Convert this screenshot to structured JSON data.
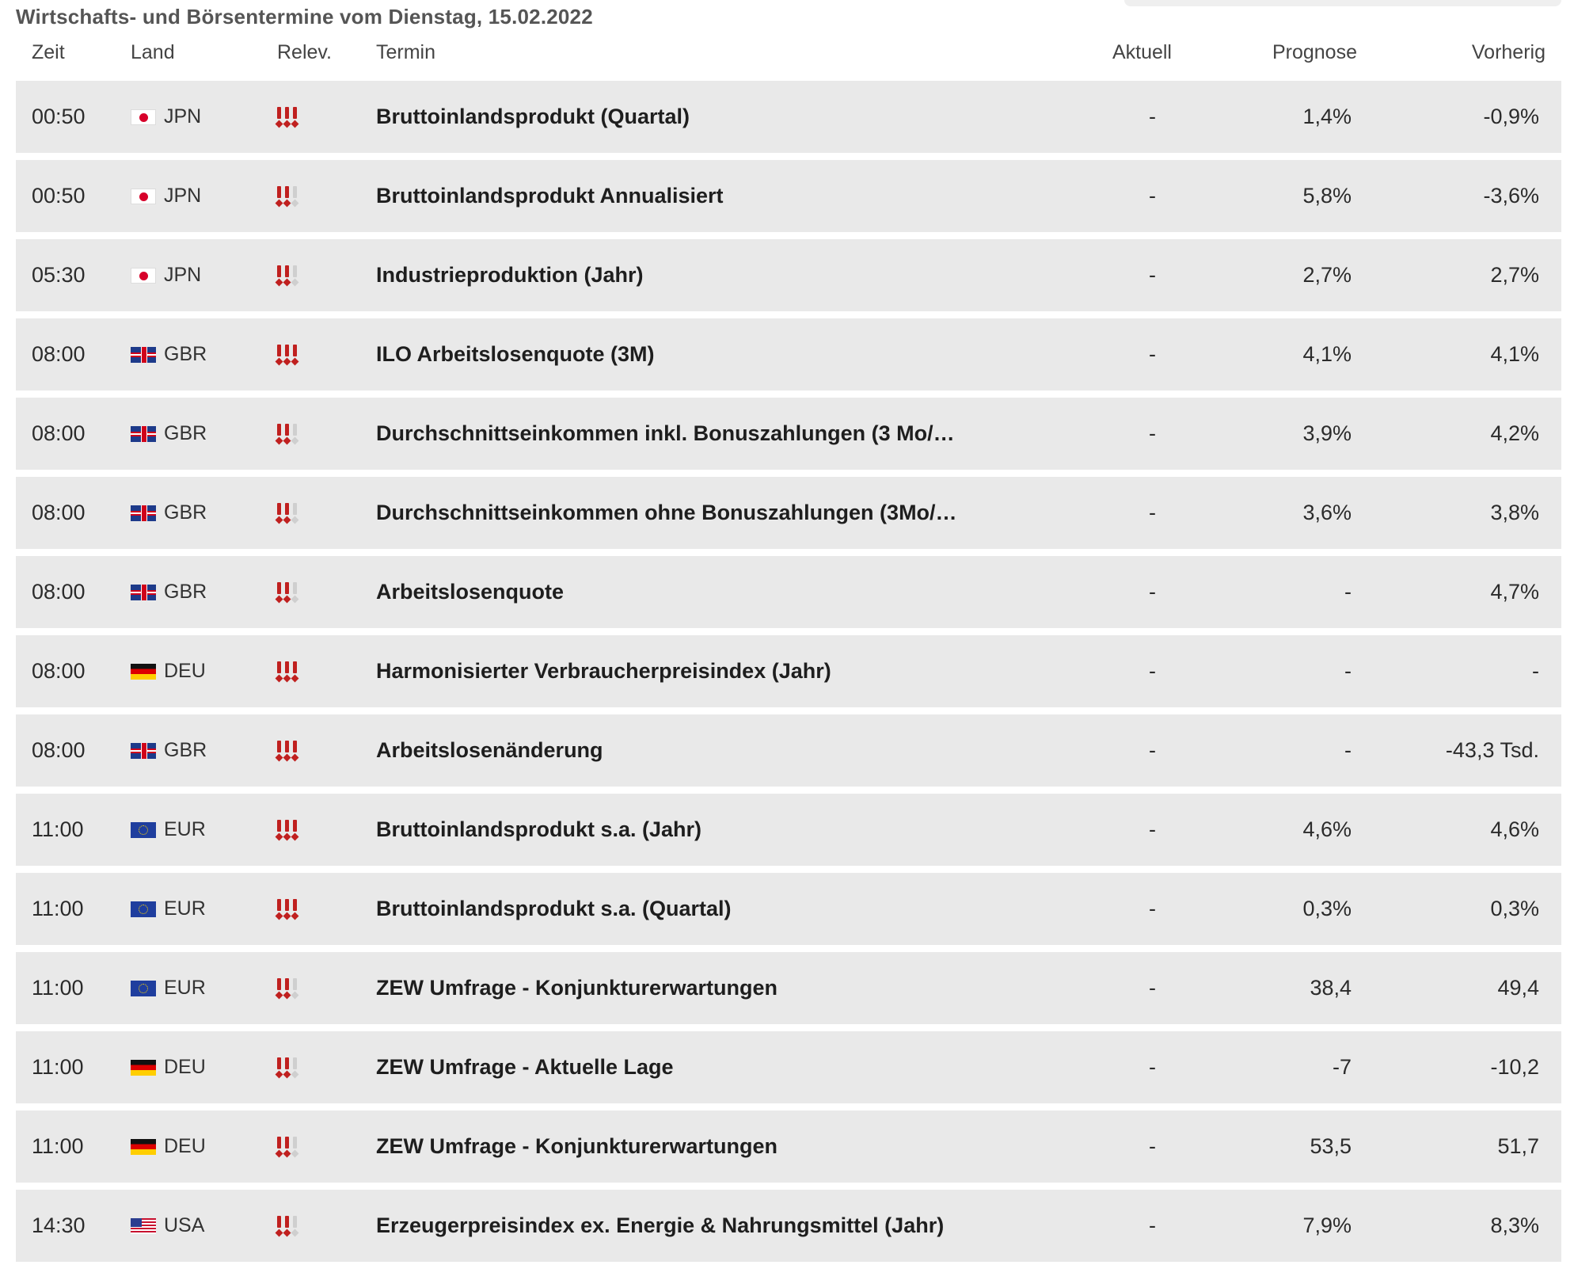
{
  "page": {
    "title": "Wirtschafts- und Börsentermine vom Dienstag, 15.02.2022"
  },
  "table": {
    "headers": {
      "time": "Zeit",
      "land": "Land",
      "relevance": "Relev.",
      "term": "Termin",
      "actual": "Aktuell",
      "forecast": "Prognose",
      "previous": "Vorherig"
    },
    "rows": [
      {
        "time": "00:50",
        "land": "JPN",
        "flag": "jp",
        "relevance": 3,
        "term": "Bruttoinlandsprodukt (Quartal)",
        "actual": "-",
        "forecast": "1,4%",
        "previous": "-0,9%"
      },
      {
        "time": "00:50",
        "land": "JPN",
        "flag": "jp",
        "relevance": 2,
        "term": "Bruttoinlandsprodukt Annualisiert",
        "actual": "-",
        "forecast": "5,8%",
        "previous": "-3,6%"
      },
      {
        "time": "05:30",
        "land": "JPN",
        "flag": "jp",
        "relevance": 2,
        "term": "Industrieproduktion (Jahr)",
        "actual": "-",
        "forecast": "2,7%",
        "previous": "2,7%"
      },
      {
        "time": "08:00",
        "land": "GBR",
        "flag": "gb",
        "relevance": 3,
        "term": "ILO Arbeitslosenquote (3M)",
        "actual": "-",
        "forecast": "4,1%",
        "previous": "4,1%"
      },
      {
        "time": "08:00",
        "land": "GBR",
        "flag": "gb",
        "relevance": 2,
        "term": "Durchschnittseinkommen inkl. Bonuszahlungen (3 Mo/…",
        "actual": "-",
        "forecast": "3,9%",
        "previous": "4,2%"
      },
      {
        "time": "08:00",
        "land": "GBR",
        "flag": "gb",
        "relevance": 2,
        "term": "Durchschnittseinkommen ohne Bonuszahlungen (3Mo/…",
        "actual": "-",
        "forecast": "3,6%",
        "previous": "3,8%"
      },
      {
        "time": "08:00",
        "land": "GBR",
        "flag": "gb",
        "relevance": 2,
        "term": "Arbeitslosenquote",
        "actual": "-",
        "forecast": "-",
        "previous": "4,7%"
      },
      {
        "time": "08:00",
        "land": "DEU",
        "flag": "de",
        "relevance": 3,
        "term": "Harmonisierter Verbraucherpreisindex (Jahr)",
        "actual": "-",
        "forecast": "-",
        "previous": "-"
      },
      {
        "time": "08:00",
        "land": "GBR",
        "flag": "gb",
        "relevance": 3,
        "term": "Arbeitslosenänderung",
        "actual": "-",
        "forecast": "-",
        "previous": "-43,3 Tsd."
      },
      {
        "time": "11:00",
        "land": "EUR",
        "flag": "eu",
        "relevance": 3,
        "term": "Bruttoinlandsprodukt s.a. (Jahr)",
        "actual": "-",
        "forecast": "4,6%",
        "previous": "4,6%"
      },
      {
        "time": "11:00",
        "land": "EUR",
        "flag": "eu",
        "relevance": 3,
        "term": "Bruttoinlandsprodukt s.a. (Quartal)",
        "actual": "-",
        "forecast": "0,3%",
        "previous": "0,3%"
      },
      {
        "time": "11:00",
        "land": "EUR",
        "flag": "eu",
        "relevance": 2,
        "term": "ZEW Umfrage - Konjunkturerwartungen",
        "actual": "-",
        "forecast": "38,4",
        "previous": "49,4"
      },
      {
        "time": "11:00",
        "land": "DEU",
        "flag": "de",
        "relevance": 2,
        "term": "ZEW Umfrage - Aktuelle Lage",
        "actual": "-",
        "forecast": "-7",
        "previous": "-10,2"
      },
      {
        "time": "11:00",
        "land": "DEU",
        "flag": "de",
        "relevance": 2,
        "term": "ZEW Umfrage - Konjunkturerwartungen",
        "actual": "-",
        "forecast": "53,5",
        "previous": "51,7"
      },
      {
        "time": "14:30",
        "land": "USA",
        "flag": "us",
        "relevance": 2,
        "term": "Erzeugerpreisindex ex. Energie & Nahrungsmittel (Jahr)",
        "actual": "-",
        "forecast": "7,9%",
        "previous": "8,3%"
      }
    ]
  }
}
